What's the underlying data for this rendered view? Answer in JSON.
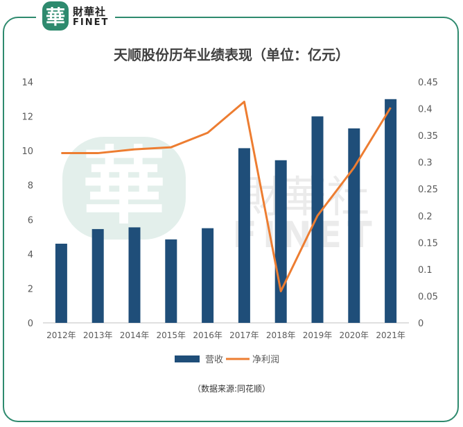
{
  "brand": {
    "mark": "華",
    "name_cn": "財華社",
    "name_en": "FINET"
  },
  "watermark": {
    "mark": "華",
    "name_cn": "財華社",
    "name_en": "FINET"
  },
  "source_note": "（数据来源:同花顺）",
  "colors": {
    "bar": "#1f4e79",
    "line": "#ed7d31",
    "frame": "#2e8a6e"
  },
  "chart_data": {
    "type": "bar",
    "title": "天顺股份历年业绩表现（单位：亿元）",
    "categories": [
      "2012年",
      "2013年",
      "2014年",
      "2015年",
      "2016年",
      "2017年",
      "2018年",
      "2019年",
      "2020年",
      "2021年"
    ],
    "series": [
      {
        "name": "营收",
        "type": "bar",
        "axis": "left",
        "values": [
          4.6,
          5.45,
          5.55,
          4.85,
          5.5,
          10.15,
          9.45,
          12.0,
          11.3,
          13.0
        ]
      },
      {
        "name": "净利润",
        "type": "line",
        "axis": "right",
        "values": [
          0.317,
          0.317,
          0.324,
          0.328,
          0.355,
          0.413,
          0.059,
          0.2,
          0.29,
          0.402
        ]
      }
    ],
    "y_left": {
      "lim": [
        0,
        14
      ],
      "ticks": [
        "0",
        "2",
        "4",
        "6",
        "8",
        "10",
        "12",
        "14"
      ]
    },
    "y_right": {
      "lim": [
        0,
        0.45
      ],
      "ticks": [
        "0",
        "0.05",
        "0.1",
        "0.15",
        "0.2",
        "0.25",
        "0.3",
        "0.35",
        "0.4",
        "0.45"
      ]
    },
    "legend_position": "bottom",
    "grid": false
  }
}
